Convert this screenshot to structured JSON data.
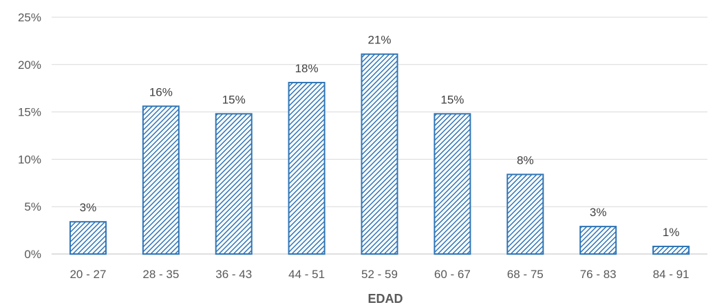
{
  "chart_data": {
    "type": "bar",
    "categories": [
      "20 - 27",
      "28 - 35",
      "36 - 43",
      "44 - 51",
      "52 - 59",
      "60 - 67",
      "68 - 75",
      "76 - 83",
      "84 - 91"
    ],
    "values": [
      3.4,
      15.6,
      14.8,
      18.1,
      21.1,
      14.8,
      8.4,
      2.9,
      0.8
    ],
    "data_labels": [
      "3%",
      "16%",
      "15%",
      "18%",
      "21%",
      "15%",
      "8%",
      "3%",
      "1%"
    ],
    "xlabel": "EDAD",
    "ylabel": "",
    "ylim": [
      0,
      25
    ],
    "yticks": [
      0,
      5,
      10,
      15,
      20,
      25
    ],
    "ytick_labels": [
      "0%",
      "5%",
      "10%",
      "15%",
      "20%",
      "25%"
    ],
    "grid": true,
    "legend": false,
    "bar_color": "#2e75b6",
    "bar_pattern": "diagonal-hatch"
  }
}
